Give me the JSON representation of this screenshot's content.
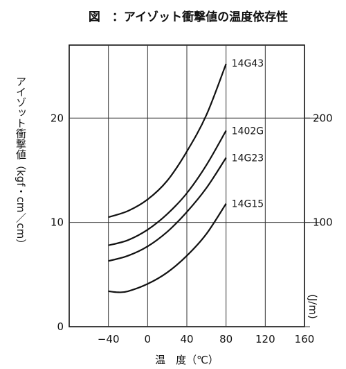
{
  "chart_data": {
    "type": "line",
    "title": "図　：アイゾット衝撃値の温度依存性",
    "xlabel": "温　度（℃）",
    "ylabel_left": "アイゾット衝撃値（kgf・cm／cm）",
    "ylabel_right": "(J/m)",
    "xlim": [
      -80,
      160
    ],
    "ylim": [
      0,
      27
    ],
    "x_ticks": [
      "−40",
      "0",
      "40",
      "80",
      "120",
      "160"
    ],
    "y_ticks_left": [
      "0",
      "10",
      "20"
    ],
    "y_ticks_right": [
      "100",
      "200"
    ],
    "grid": true,
    "series": [
      {
        "name": "14G43",
        "x": [
          -40,
          -20,
          0,
          20,
          40,
          60,
          80
        ],
        "y": [
          10.5,
          11.1,
          12.2,
          14.0,
          16.8,
          20.3,
          25.2
        ]
      },
      {
        "name": "1402G",
        "x": [
          -40,
          -20,
          0,
          20,
          40,
          60,
          80
        ],
        "y": [
          7.8,
          8.3,
          9.3,
          10.8,
          12.8,
          15.5,
          18.8
        ]
      },
      {
        "name": "14G23",
        "x": [
          -40,
          -20,
          0,
          20,
          40,
          60,
          80
        ],
        "y": [
          6.3,
          6.8,
          7.7,
          9.1,
          11.0,
          13.3,
          16.2
        ]
      },
      {
        "name": "14G15",
        "x": [
          -40,
          -30,
          -20,
          0,
          20,
          40,
          60,
          80
        ],
        "y": [
          3.4,
          3.3,
          3.4,
          4.1,
          5.2,
          6.8,
          8.9,
          11.8
        ]
      }
    ]
  }
}
